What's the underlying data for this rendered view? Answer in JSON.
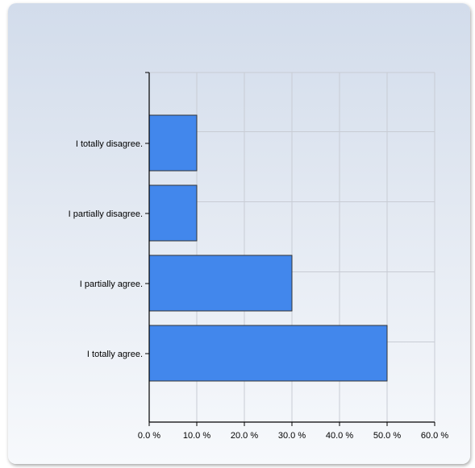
{
  "chart_data": {
    "type": "bar",
    "orientation": "horizontal",
    "categories": [
      "I totally disagree.",
      "I partially disagree.",
      "I partially agree.",
      "I totally agree."
    ],
    "values": [
      10,
      10,
      30,
      50
    ],
    "xlim": [
      0,
      60
    ],
    "x_ticks": [
      0,
      10,
      20,
      30,
      40,
      50,
      60
    ],
    "x_tick_labels": [
      "0.0 %",
      "10.0 %",
      "20.0 %",
      "30.0 %",
      "40.0 %",
      "50.0 %",
      "60.0 %"
    ],
    "title": "",
    "xlabel": "",
    "ylabel": "",
    "grid": true,
    "legend": "none",
    "colors": {
      "bar_fill": "#4287ec",
      "bar_stroke": "#333333",
      "grid": "#c8ccd4",
      "axis": "#000000"
    }
  }
}
